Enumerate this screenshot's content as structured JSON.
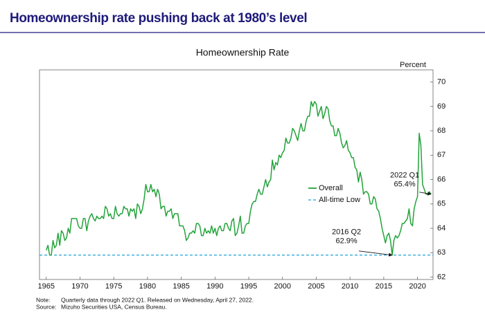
{
  "header": {
    "title": "Homeownership rate pushing back at 1980’s level"
  },
  "chart_data": {
    "type": "line",
    "title": "Homeownership Rate",
    "y_axis_label": "Percent",
    "y_axis_side": "right",
    "xlim": [
      1964,
      2022.3
    ],
    "ylim": [
      61.9,
      70.5
    ],
    "xticks": [
      1965,
      1970,
      1975,
      1980,
      1985,
      1990,
      1995,
      2000,
      2005,
      2010,
      2015,
      2020
    ],
    "yticks": [
      62,
      63,
      64,
      65,
      66,
      67,
      68,
      69,
      70
    ],
    "grid": false,
    "legend_position": "right",
    "x": [
      1965,
      1965.25,
      1965.5,
      1965.75,
      1966,
      1966.25,
      1966.5,
      1966.75,
      1967,
      1967.25,
      1967.5,
      1967.75,
      1968,
      1968.25,
      1968.5,
      1968.75,
      1969,
      1969.25,
      1969.5,
      1969.75,
      1970,
      1970.25,
      1970.5,
      1970.75,
      1971,
      1971.25,
      1971.5,
      1971.75,
      1972,
      1972.25,
      1972.5,
      1972.75,
      1973,
      1973.25,
      1973.5,
      1973.75,
      1974,
      1974.25,
      1974.5,
      1974.75,
      1975,
      1975.25,
      1975.5,
      1975.75,
      1976,
      1976.25,
      1976.5,
      1976.75,
      1977,
      1977.25,
      1977.5,
      1977.75,
      1978,
      1978.25,
      1978.5,
      1978.75,
      1979,
      1979.25,
      1979.5,
      1979.75,
      1980,
      1980.25,
      1980.5,
      1980.75,
      1981,
      1981.25,
      1981.5,
      1981.75,
      1982,
      1982.25,
      1982.5,
      1982.75,
      1983,
      1983.25,
      1983.5,
      1983.75,
      1984,
      1984.25,
      1984.5,
      1984.75,
      1985,
      1985.25,
      1985.5,
      1985.75,
      1986,
      1986.25,
      1986.5,
      1986.75,
      1987,
      1987.25,
      1987.5,
      1987.75,
      1988,
      1988.25,
      1988.5,
      1988.75,
      1989,
      1989.25,
      1989.5,
      1989.75,
      1990,
      1990.25,
      1990.5,
      1990.75,
      1991,
      1991.25,
      1991.5,
      1991.75,
      1992,
      1992.25,
      1992.5,
      1992.75,
      1993,
      1993.25,
      1993.5,
      1993.75,
      1994,
      1994.25,
      1994.5,
      1994.75,
      1995,
      1995.25,
      1995.5,
      1995.75,
      1996,
      1996.25,
      1996.5,
      1996.75,
      1997,
      1997.25,
      1997.5,
      1997.75,
      1998,
      1998.25,
      1998.5,
      1998.75,
      1999,
      1999.25,
      1999.5,
      1999.75,
      2000,
      2000.25,
      2000.5,
      2000.75,
      2001,
      2001.25,
      2001.5,
      2001.75,
      2002,
      2002.25,
      2002.5,
      2002.75,
      2003,
      2003.25,
      2003.5,
      2003.75,
      2004,
      2004.25,
      2004.5,
      2004.75,
      2005,
      2005.25,
      2005.5,
      2005.75,
      2006,
      2006.25,
      2006.5,
      2006.75,
      2007,
      2007.25,
      2007.5,
      2007.75,
      2008,
      2008.25,
      2008.5,
      2008.75,
      2009,
      2009.25,
      2009.5,
      2009.75,
      2010,
      2010.25,
      2010.5,
      2010.75,
      2011,
      2011.25,
      2011.5,
      2011.75,
      2012,
      2012.25,
      2012.5,
      2012.75,
      2013,
      2013.25,
      2013.5,
      2013.75,
      2014,
      2014.25,
      2014.5,
      2014.75,
      2015,
      2015.25,
      2015.5,
      2015.75,
      2016,
      2016.25,
      2016.5,
      2016.75,
      2017,
      2017.25,
      2017.5,
      2017.75,
      2018,
      2018.25,
      2018.5,
      2018.75,
      2019,
      2019.25,
      2019.5,
      2019.75,
      2020,
      2020.25,
      2020.5,
      2020.75,
      2021,
      2021.25,
      2021.5,
      2021.75,
      2022
    ],
    "series": [
      {
        "name": "Overall",
        "color": "#22a33a",
        "values": [
          63.1,
          63.3,
          62.9,
          62.9,
          63.5,
          63.2,
          63.3,
          63.8,
          63.3,
          63.9,
          63.8,
          63.5,
          63.6,
          64.0,
          63.8,
          64.4,
          64.4,
          64.4,
          64.4,
          64.1,
          64.0,
          64.0,
          64.4,
          64.4,
          63.9,
          64.3,
          64.5,
          64.6,
          64.4,
          64.3,
          64.5,
          64.4,
          64.4,
          64.5,
          64.4,
          64.9,
          64.8,
          64.5,
          64.6,
          64.4,
          64.4,
          64.9,
          64.6,
          64.5,
          64.6,
          64.6,
          64.9,
          64.8,
          64.8,
          64.5,
          64.8,
          64.7,
          64.8,
          64.4,
          65.0,
          64.9,
          64.6,
          64.8,
          65.2,
          65.8,
          65.5,
          65.5,
          65.8,
          65.5,
          65.6,
          65.3,
          65.6,
          65.4,
          64.8,
          64.9,
          64.9,
          64.5,
          64.7,
          64.7,
          64.8,
          64.4,
          64.6,
          64.6,
          64.6,
          64.1,
          64.1,
          64.1,
          63.9,
          63.5,
          63.6,
          63.8,
          63.8,
          63.9,
          63.8,
          64.2,
          64.2,
          64.1,
          63.7,
          63.7,
          64.0,
          63.8,
          63.9,
          63.8,
          64.1,
          63.8,
          64.0,
          63.7,
          64.0,
          64.1,
          63.9,
          63.9,
          64.2,
          64.2,
          64.0,
          63.9,
          64.3,
          64.4,
          63.7,
          63.8,
          64.1,
          64.5,
          63.8,
          63.8,
          64.1,
          64.2,
          64.2,
          64.7,
          65.0,
          65.1,
          65.1,
          65.4,
          65.6,
          65.4,
          65.4,
          65.7,
          66.0,
          65.7,
          65.9,
          66.0,
          66.8,
          66.4,
          66.7,
          66.6,
          67.0,
          66.9,
          67.1,
          67.2,
          67.7,
          67.5,
          67.5,
          67.7,
          68.1,
          68.0,
          67.8,
          67.6,
          68.0,
          68.3,
          68.0,
          68.0,
          68.4,
          68.6,
          68.6,
          69.2,
          69.0,
          69.2,
          69.1,
          68.6,
          68.8,
          69.0,
          68.5,
          68.7,
          69.0,
          68.9,
          68.4,
          68.2,
          68.2,
          67.8,
          67.8,
          68.1,
          67.9,
          67.5,
          67.3,
          67.4,
          67.6,
          67.2,
          67.1,
          66.9,
          66.9,
          66.5,
          66.4,
          65.9,
          66.3,
          66.0,
          65.4,
          65.5,
          65.5,
          65.4,
          65.0,
          65.0,
          65.3,
          65.2,
          64.8,
          64.7,
          64.4,
          64.0,
          63.7,
          63.4,
          63.7,
          63.8,
          63.5,
          62.9,
          63.5,
          63.7,
          63.6,
          63.7,
          63.9,
          64.2,
          64.2,
          64.3,
          64.4,
          64.8,
          64.2,
          64.1,
          64.8,
          65.1,
          65.3,
          67.9,
          67.4,
          65.8,
          65.6,
          65.4,
          65.4,
          65.5,
          65.4
        ]
      }
    ],
    "reference_lines": [
      {
        "name": "All-time Low",
        "value": 62.9,
        "color": "#1fa0d6"
      }
    ],
    "annotations": [
      {
        "label": "2016 Q2",
        "value_label": "62.9%",
        "x": 2016.25,
        "y": 62.9
      },
      {
        "label": "2022 Q1",
        "value_label": "65.4%",
        "x": 2022,
        "y": 65.4
      }
    ]
  },
  "footnotes": {
    "note_label": "Note:",
    "note": "Quarterly data through 2022 Q1. Released on Wednesday, April 27, 2022.",
    "source_label": "Source:",
    "source": "Mizuho Securities USA, Census Bureau."
  }
}
